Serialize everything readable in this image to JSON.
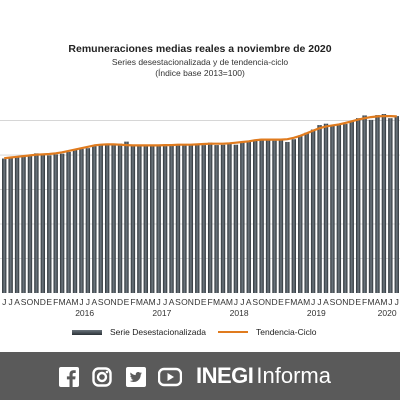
{
  "chart_data": {
    "type": "bar",
    "title": "Remuneraciones medias reales a noviembre de 2020",
    "subtitle_lines": [
      "Series desestacionalizada y de tendencia-ciclo",
      "(Índice base 2013=100)"
    ],
    "month_letters": [
      "E",
      "F",
      "M",
      "A",
      "M",
      "J",
      "J",
      "A",
      "S",
      "O",
      "N",
      "D"
    ],
    "start_month_index": 5,
    "year_labels": [
      "2016",
      "2017",
      "2018",
      "2019",
      "2020"
    ],
    "series": [
      {
        "name": "Serie Desestacionalizada",
        "color": "#3a4148",
        "values": [
          99.0,
          99.3,
          99.6,
          99.9,
          99.8,
          100.5,
          100.1,
          99.9,
          100.2,
          100.4,
          100.9,
          101.6,
          101.8,
          102.0,
          102.6,
          103.0,
          103.1,
          103.2,
          103.3,
          103.9,
          102.7,
          102.9,
          102.8,
          102.6,
          102.8,
          102.6,
          103.0,
          103.1,
          102.9,
          103.1,
          103.0,
          102.9,
          103.6,
          102.9,
          103.0,
          103.2,
          103.0,
          103.9,
          104.1,
          104.4,
          104.7,
          104.6,
          104.2,
          104.5,
          103.8,
          104.6,
          105.7,
          106.5,
          107.4,
          108.7,
          109.1,
          108.6,
          108.9,
          109.0,
          109.8,
          110.7,
          111.5,
          110.2,
          111.6,
          111.9,
          110.7,
          111.3
        ],
        "y": [
          99.0,
          99.3,
          99.6,
          99.9,
          99.8,
          100.5,
          100.1,
          99.9,
          100.2,
          100.4,
          100.9,
          101.6,
          101.8,
          102.0,
          102.6,
          103.0,
          103.1,
          103.2,
          103.3,
          103.9,
          102.7,
          102.9,
          102.8,
          102.6,
          102.8,
          102.6,
          103.0,
          103.1,
          102.9,
          103.1,
          103.0,
          102.9,
          103.6,
          102.9,
          103.0,
          103.2,
          103.0,
          103.9,
          104.1,
          104.4,
          104.7,
          104.6,
          104.2,
          104.5,
          103.8,
          104.6,
          105.7,
          106.5,
          107.4,
          108.7,
          109.1,
          108.6,
          108.9,
          109.0,
          109.8,
          110.7,
          111.5,
          110.2,
          111.6,
          111.9,
          110.7,
          111.3
        ]
      },
      {
        "name": "Tendencia-Ciclo",
        "color": "#e07b1e",
        "values": [
          99.1,
          99.3,
          99.5,
          99.7,
          99.9,
          100.1,
          100.2,
          100.3,
          100.5,
          100.8,
          101.2,
          101.6,
          102.0,
          102.4,
          102.8,
          103.0,
          103.1,
          103.1,
          103.0,
          102.9,
          102.8,
          102.8,
          102.8,
          102.8,
          102.8,
          102.9,
          102.9,
          103.0,
          103.0,
          103.0,
          103.1,
          103.2,
          103.3,
          103.3,
          103.3,
          103.4,
          103.6,
          103.8,
          104.0,
          104.3,
          104.5,
          104.5,
          104.5,
          104.5,
          104.6,
          105.0,
          105.6,
          106.3,
          107.1,
          107.8,
          108.3,
          108.6,
          108.9,
          109.3,
          109.8,
          110.3,
          110.7,
          111.0,
          111.2,
          111.3,
          111.3,
          111.2
        ],
        "y": [
          99.1,
          99.3,
          99.5,
          99.7,
          99.9,
          100.1,
          100.2,
          100.3,
          100.5,
          100.8,
          101.2,
          101.6,
          102.0,
          102.4,
          102.8,
          103.0,
          103.1,
          103.1,
          103.0,
          102.9,
          102.8,
          102.8,
          102.8,
          102.8,
          102.8,
          102.9,
          102.9,
          103.0,
          103.0,
          103.0,
          103.1,
          103.2,
          103.3,
          103.3,
          103.3,
          103.4,
          103.6,
          103.8,
          104.0,
          104.3,
          104.5,
          104.5,
          104.5,
          104.5,
          104.6,
          105.0,
          105.6,
          106.3,
          107.1,
          107.8,
          108.3,
          108.6,
          108.9,
          109.3,
          109.8,
          110.3,
          110.7,
          111.0,
          111.2,
          111.3,
          111.3,
          111.2
        ]
      }
    ],
    "ylim": [
      60,
      118
    ],
    "grid": true
  },
  "footer": {
    "brand_bold": "INEGI",
    "brand_light": "Informa",
    "icons": [
      "facebook-icon",
      "instagram-icon",
      "twitter-icon",
      "youtube-icon"
    ],
    "background": "#5a5a5a"
  }
}
